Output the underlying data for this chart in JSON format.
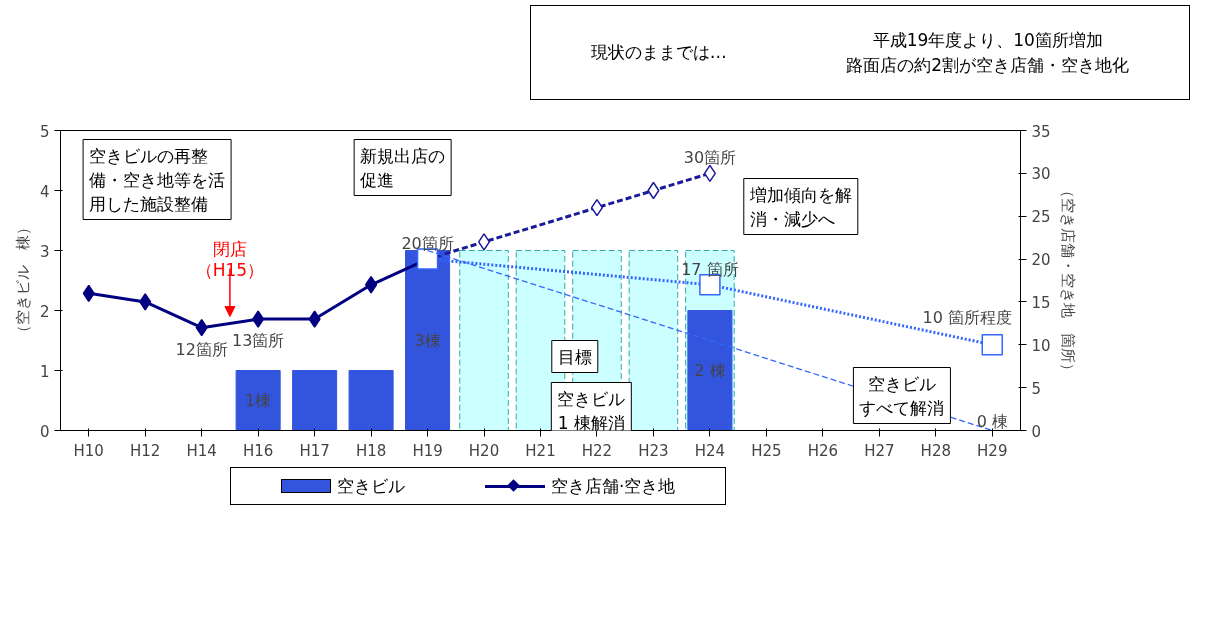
{
  "chart_data": {
    "type": "bar",
    "categories": [
      "H10",
      "H12",
      "H14",
      "H16",
      "H17",
      "H18",
      "H19",
      "H20",
      "H21",
      "H22",
      "H23",
      "H24",
      "H25",
      "H26",
      "H27",
      "H28",
      "H29"
    ],
    "ylabel": "（空きビル　棟）",
    "y2label": "（空き店舗・空き地　箇所）",
    "ylim": [
      0,
      5
    ],
    "yticks": [
      0,
      1,
      2,
      3,
      4,
      5
    ],
    "y2lim": [
      0,
      35
    ],
    "y2ticks": [
      0,
      5,
      10,
      15,
      20,
      25,
      30,
      35
    ],
    "series": [
      {
        "name": "空きビル",
        "color": "#3355dd",
        "values": [
          null,
          null,
          null,
          1,
          1,
          1,
          3,
          null,
          null,
          null,
          null,
          2,
          null,
          null,
          null,
          null,
          0
        ],
        "value_labels": [
          null,
          null,
          null,
          "1棟",
          null,
          null,
          "3棟",
          null,
          null,
          null,
          null,
          "2 棟",
          null,
          null,
          null,
          null,
          "0 棟"
        ]
      },
      {
        "color": "#ccffff",
        "line_style": "dashed",
        "values": [
          null,
          null,
          null,
          null,
          null,
          null,
          null,
          3,
          3,
          3,
          3,
          3,
          null,
          null,
          null,
          null,
          null
        ]
      },
      {
        "name": "空き店舗·空き地",
        "type": "line",
        "axis": "y2",
        "color": "#000080",
        "marker": "diamond",
        "line_style": "solid",
        "values": [
          16,
          15,
          12,
          13,
          13,
          17,
          20,
          null,
          null,
          null,
          null,
          null,
          null,
          null,
          null,
          null,
          null
        ],
        "value_labels": [
          null,
          null,
          "12箇所",
          "13箇所",
          null,
          null,
          "20箇所",
          null,
          null,
          null,
          null,
          null,
          null,
          null,
          null,
          null,
          null
        ]
      },
      {
        "type": "line",
        "axis": "y2",
        "color": "#1a1a9c",
        "marker": "diamond",
        "line_style": "dashed",
        "values": [
          null,
          null,
          null,
          null,
          null,
          null,
          20,
          22,
          null,
          26,
          28,
          30,
          null,
          null,
          null,
          null,
          null
        ],
        "value_labels": [
          null,
          null,
          null,
          null,
          null,
          null,
          null,
          null,
          null,
          null,
          null,
          "30箇所",
          null,
          null,
          null,
          null,
          null
        ]
      },
      {
        "type": "line",
        "axis": "y2",
        "color": "#3366ff",
        "marker": "square",
        "line_style": "dotted",
        "values": [
          null,
          null,
          null,
          null,
          null,
          null,
          20,
          null,
          null,
          null,
          null,
          17,
          null,
          null,
          null,
          null,
          10
        ],
        "value_labels": [
          null,
          null,
          null,
          null,
          null,
          null,
          null,
          null,
          null,
          null,
          null,
          "17 箇所",
          null,
          null,
          null,
          null,
          "10 箇所程度"
        ]
      },
      {
        "type": "line",
        "color": "#3366ff",
        "marker": "none",
        "line_style": "dashed",
        "values": [
          null,
          null,
          null,
          null,
          null,
          null,
          3,
          null,
          null,
          null,
          null,
          null,
          null,
          null,
          null,
          null,
          0
        ]
      }
    ],
    "annotations": [
      "現状のままでは…",
      "平成19年度より、10箇所増加路面店の約2割が空き店舗・空き地化",
      "空きビルの再整備・空き地等を活用した施設整備",
      "新規出店の促進",
      "閉店",
      "（H15）",
      "増加傾向を解消・減少へ",
      "目標",
      "空きビル1 棟解消",
      "空きビルすべて解消"
    ],
    "legend": "bottom",
    "grid": false
  }
}
